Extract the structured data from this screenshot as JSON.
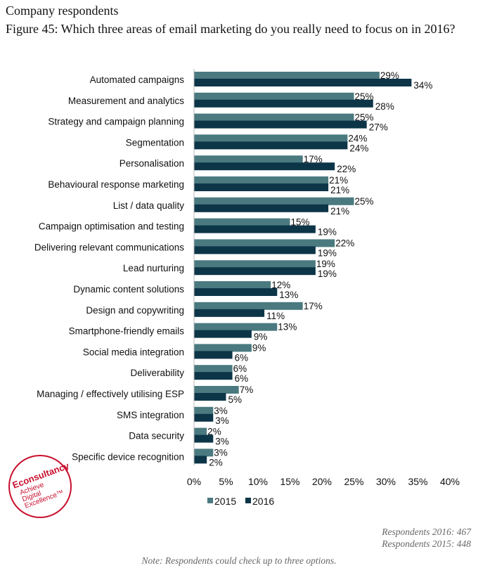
{
  "header": {
    "line1": "Company respondents",
    "title": "Figure 45: Which three areas of email marketing do you really need to focus on in 2016?"
  },
  "chart_data": {
    "type": "bar",
    "orientation": "horizontal",
    "title": "Figure 45: Which three areas of email marketing do you really need to focus on in 2016?",
    "categories": [
      "Automated campaigns",
      "Measurement and analytics",
      "Strategy and campaign planning",
      "Segmentation",
      "Personalisation",
      "Behavioural response marketing",
      "List / data quality",
      "Campaign optimisation and testing",
      "Delivering relevant communications",
      "Lead nurturing",
      "Dynamic content solutions",
      "Design and copywriting",
      "Smartphone-friendly emails",
      "Social media integration",
      "Deliverability",
      "Managing / effectively utilising ESP",
      "SMS integration",
      "Data security",
      "Specific device recognition"
    ],
    "series": [
      {
        "name": "2015",
        "color": "#4a7a80",
        "values": [
          29,
          25,
          25,
          24,
          17,
          21,
          25,
          15,
          22,
          19,
          12,
          17,
          13,
          9,
          6,
          7,
          3,
          2,
          3
        ]
      },
      {
        "name": "2016",
        "color": "#0d3548",
        "values": [
          34,
          28,
          27,
          24,
          22,
          21,
          21,
          19,
          19,
          19,
          13,
          11,
          9,
          6,
          6,
          5,
          3,
          3,
          2
        ]
      }
    ],
    "xlim": [
      0,
      40
    ],
    "xticks": [
      "0%",
      "5%",
      "10%",
      "15%",
      "20%",
      "25%",
      "30%",
      "35%",
      "40%"
    ],
    "xtick_values": [
      0,
      5,
      10,
      15,
      20,
      25,
      30,
      35,
      40
    ],
    "legend": "bottom",
    "grid": false
  },
  "footer": {
    "resp2016": "Respondents 2016: 467",
    "resp2015": "Respondents 2015: 448",
    "note": "Note: Respondents could check up to three options."
  },
  "logo": {
    "brand": "Econsultancy",
    "tagline": "Achieve Digital Excellence"
  }
}
